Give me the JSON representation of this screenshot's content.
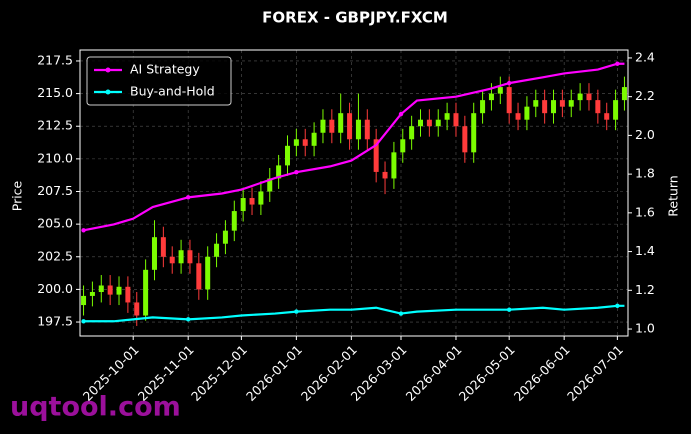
{
  "chart_data": {
    "type": "candlestick",
    "title": "FOREX - GBPJPY.FXCM",
    "ylabel": "Price",
    "y2label": "Return",
    "x": [
      "2025-09-03",
      "2025-09-08",
      "2025-09-13",
      "2025-09-18",
      "2025-09-23",
      "2025-09-28",
      "2025-10-03",
      "2025-10-08",
      "2025-10-13",
      "2025-10-18",
      "2025-10-23",
      "2025-10-28",
      "2025-11-02",
      "2025-11-07",
      "2025-11-12",
      "2025-11-17",
      "2025-11-22",
      "2025-11-27",
      "2025-12-02",
      "2025-12-07",
      "2025-12-12",
      "2025-12-17",
      "2025-12-22",
      "2025-12-27",
      "2026-01-01",
      "2026-01-06",
      "2026-01-11",
      "2026-01-16",
      "2026-01-21",
      "2026-01-26",
      "2026-01-31",
      "2026-02-05",
      "2026-02-10",
      "2026-02-15",
      "2026-02-20",
      "2026-02-25",
      "2026-03-02",
      "2026-03-07",
      "2026-03-12",
      "2026-03-17",
      "2026-03-22",
      "2026-03-27",
      "2026-04-01",
      "2026-04-06",
      "2026-04-11",
      "2026-04-16",
      "2026-04-21",
      "2026-04-26",
      "2026-05-01",
      "2026-05-06",
      "2026-05-11",
      "2026-05-16",
      "2026-05-21",
      "2026-05-26",
      "2026-05-31",
      "2026-06-05",
      "2026-06-10",
      "2026-06-15",
      "2026-06-20",
      "2026-06-25",
      "2026-06-30",
      "2026-07-05"
    ],
    "open": [
      198.8,
      199.5,
      199.8,
      200.3,
      199.6,
      200.2,
      199.0,
      198.0,
      201.5,
      204.0,
      202.5,
      202.0,
      203.0,
      202.0,
      200.0,
      202.5,
      203.5,
      204.5,
      206.0,
      207.0,
      206.5,
      207.5,
      208.5,
      209.5,
      211.0,
      211.5,
      211.0,
      212.0,
      213.0,
      212.0,
      213.5,
      211.5,
      213.0,
      211.5,
      209.0,
      208.5,
      210.5,
      211.5,
      212.5,
      213.0,
      212.5,
      213.0,
      213.5,
      212.5,
      210.5,
      213.5,
      214.5,
      215.0,
      215.5,
      213.5,
      213.0,
      214.0,
      214.5,
      213.5,
      214.5,
      214.0,
      214.5,
      215.0,
      214.5,
      213.5,
      213.0,
      214.5
    ],
    "high": [
      200.3,
      200.6,
      201.1,
      201.1,
      201.0,
      201.0,
      199.8,
      202.3,
      205.3,
      204.8,
      203.3,
      203.8,
      203.8,
      202.8,
      203.3,
      204.3,
      205.3,
      206.8,
      207.8,
      207.8,
      208.3,
      209.3,
      210.3,
      211.8,
      212.3,
      212.3,
      212.8,
      213.8,
      213.8,
      215.0,
      214.3,
      215.0,
      213.8,
      212.3,
      209.8,
      211.3,
      212.3,
      213.3,
      213.8,
      213.8,
      213.8,
      214.3,
      214.3,
      213.3,
      214.3,
      215.3,
      215.8,
      216.3,
      216.3,
      214.3,
      214.8,
      215.3,
      215.3,
      215.3,
      215.3,
      215.3,
      215.8,
      215.8,
      215.3,
      214.3,
      215.3,
      216.3
    ],
    "low": [
      198.0,
      198.7,
      199.0,
      198.8,
      198.8,
      198.2,
      197.2,
      197.6,
      200.7,
      201.7,
      201.2,
      201.2,
      201.2,
      199.2,
      199.2,
      201.7,
      202.7,
      203.7,
      205.2,
      205.7,
      205.7,
      206.7,
      207.7,
      208.7,
      210.2,
      210.2,
      210.2,
      211.2,
      211.2,
      211.2,
      210.7,
      210.7,
      210.7,
      208.2,
      207.3,
      207.7,
      209.7,
      210.7,
      211.7,
      211.7,
      211.7,
      212.2,
      211.7,
      209.7,
      209.7,
      212.7,
      213.7,
      214.2,
      212.7,
      212.2,
      212.2,
      213.2,
      212.7,
      212.7,
      213.2,
      213.2,
      213.7,
      213.7,
      212.7,
      212.2,
      212.2,
      213.7
    ],
    "close": [
      199.5,
      199.8,
      200.3,
      199.6,
      200.2,
      199.0,
      198.0,
      201.5,
      204.0,
      202.5,
      202.0,
      203.0,
      202.0,
      200.0,
      202.5,
      203.5,
      204.5,
      206.0,
      207.0,
      206.5,
      207.5,
      208.5,
      209.5,
      211.0,
      211.5,
      211.0,
      212.0,
      213.0,
      212.0,
      213.5,
      211.5,
      213.0,
      211.5,
      209.0,
      208.5,
      210.5,
      211.5,
      212.5,
      213.0,
      212.5,
      213.0,
      213.5,
      212.5,
      210.5,
      213.5,
      214.5,
      215.0,
      215.5,
      213.5,
      213.0,
      214.0,
      214.5,
      213.5,
      214.5,
      214.0,
      214.5,
      215.0,
      214.5,
      213.5,
      213.0,
      214.5,
      215.5
    ],
    "up_color": "#7cfc00",
    "down_color": "#ff3b3b",
    "series": [
      {
        "name": "AI Strategy",
        "color": "#ff00ff",
        "axis": "y2",
        "x": [
          "2025-09-03",
          "2025-09-20",
          "2025-10-01",
          "2025-10-12",
          "2025-11-01",
          "2025-11-20",
          "2025-12-01",
          "2025-12-20",
          "2026-01-01",
          "2026-01-20",
          "2026-02-01",
          "2026-02-15",
          "2026-03-01",
          "2026-03-10",
          "2026-04-01",
          "2026-04-20",
          "2026-05-01",
          "2026-05-20",
          "2026-06-01",
          "2026-06-20",
          "2026-07-01",
          "2026-07-05"
        ],
        "values": [
          1.51,
          1.54,
          1.57,
          1.63,
          1.68,
          1.7,
          1.72,
          1.78,
          1.81,
          1.84,
          1.87,
          1.95,
          2.11,
          2.18,
          2.2,
          2.24,
          2.27,
          2.3,
          2.32,
          2.34,
          2.37,
          2.37
        ]
      },
      {
        "name": "Buy-and-Hold",
        "color": "#00ffff",
        "axis": "y2",
        "x": [
          "2025-09-03",
          "2025-09-20",
          "2025-10-01",
          "2025-10-12",
          "2025-11-01",
          "2025-11-20",
          "2025-12-01",
          "2025-12-20",
          "2026-01-01",
          "2026-01-20",
          "2026-02-01",
          "2026-02-15",
          "2026-03-01",
          "2026-03-10",
          "2026-04-01",
          "2026-04-20",
          "2026-05-01",
          "2026-05-20",
          "2026-06-01",
          "2026-06-20",
          "2026-07-01",
          "2026-07-05"
        ],
        "values": [
          1.04,
          1.04,
          1.05,
          1.06,
          1.05,
          1.06,
          1.07,
          1.08,
          1.09,
          1.1,
          1.1,
          1.11,
          1.08,
          1.09,
          1.1,
          1.1,
          1.1,
          1.11,
          1.1,
          1.11,
          1.12,
          1.12
        ]
      }
    ],
    "xlim": [
      "2025-09-01",
      "2026-07-07"
    ],
    "xticks": [
      "2025-10-01",
      "2025-11-01",
      "2025-12-01",
      "2026-01-01",
      "2026-02-01",
      "2026-03-01",
      "2026-04-01",
      "2026-05-01",
      "2026-06-01",
      "2026-07-01"
    ],
    "ylim": [
      196.43,
      218.34
    ],
    "yticks": [
      197.5,
      {
        "value": 200,
        "label": "200.0"
      },
      202.5,
      {
        "value": 205,
        "label": "205.0"
      },
      207.5,
      {
        "value": 210,
        "label": "210.0"
      },
      212.5,
      {
        "value": 215,
        "label": "215.0"
      },
      217.5
    ],
    "y2lim": [
      0.964,
      2.441
    ],
    "y2ticks": [
      {
        "value": 1,
        "label": "1.0"
      },
      1.2,
      1.4,
      1.6,
      1.8,
      {
        "value": 2,
        "label": "2.0"
      },
      2.2,
      2.4
    ],
    "grid": true,
    "legend": "upper-left",
    "watermark": "uqtool.com"
  }
}
